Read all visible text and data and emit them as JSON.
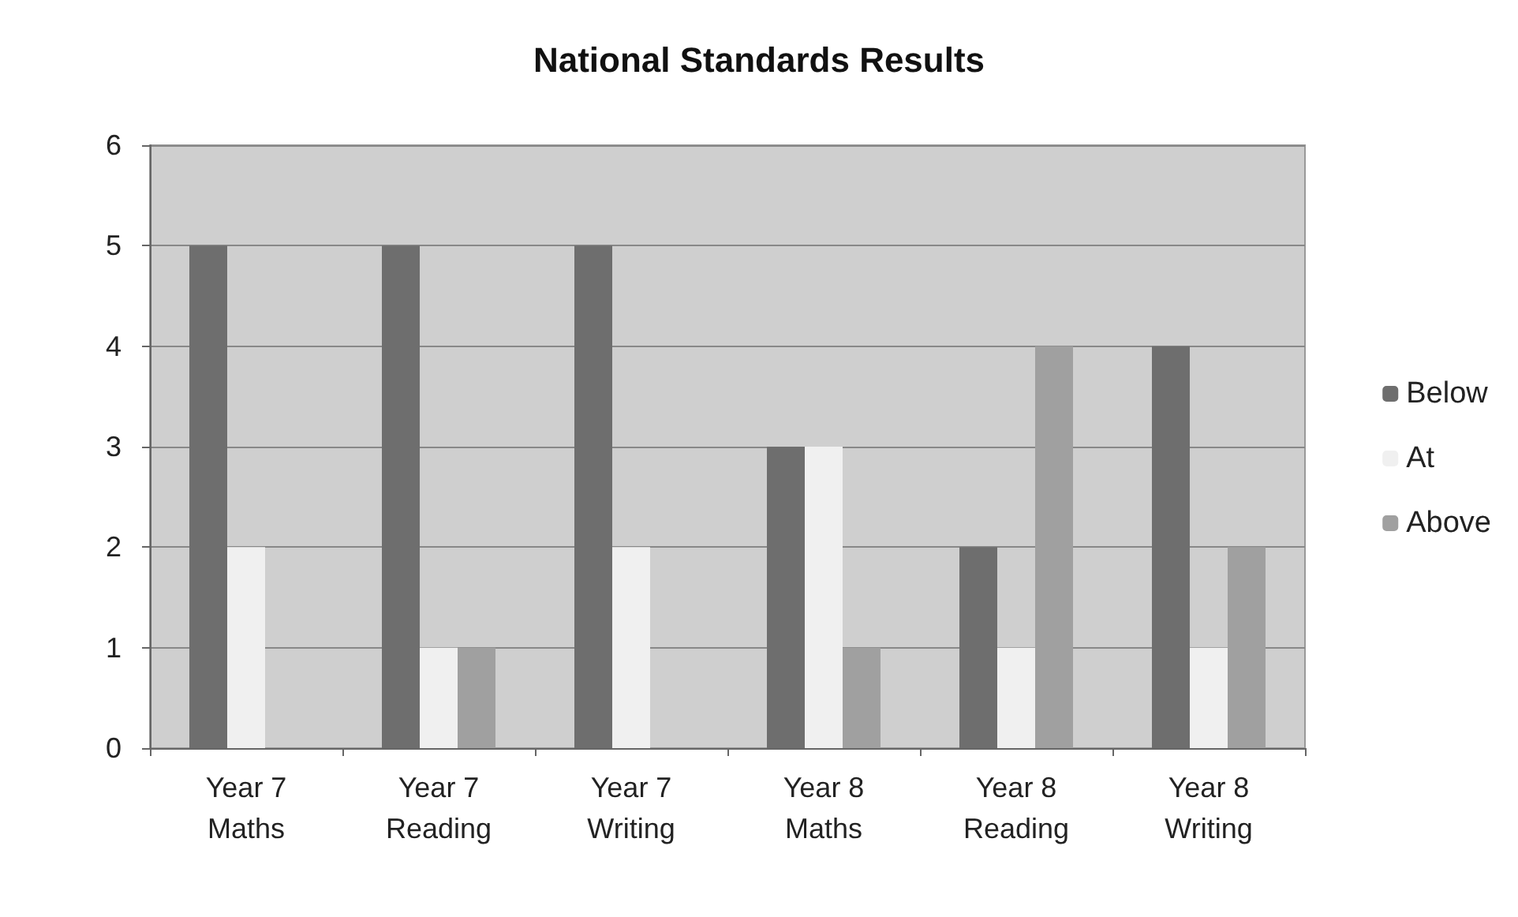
{
  "chart_data": {
    "type": "bar",
    "title": "National Standards Results",
    "categories": [
      "Year 7\nMaths",
      "Year 7\nReading",
      "Year 7\nWriting",
      "Year 8\nMaths",
      "Year 8\nReading",
      "Year 8\nWriting"
    ],
    "series": [
      {
        "name": "Below",
        "color": "#6e6e6e",
        "values": [
          5,
          5,
          5,
          3,
          2,
          4
        ]
      },
      {
        "name": "At",
        "color": "#f0f0f0",
        "values": [
          2,
          1,
          2,
          3,
          1,
          1
        ]
      },
      {
        "name": "Above",
        "color": "#a0a0a0",
        "values": [
          0,
          1,
          0,
          1,
          4,
          2
        ]
      }
    ],
    "ylim": [
      0,
      6
    ],
    "yticks": [
      0,
      1,
      2,
      3,
      4,
      5,
      6
    ],
    "grid": "y",
    "legend": "right"
  }
}
